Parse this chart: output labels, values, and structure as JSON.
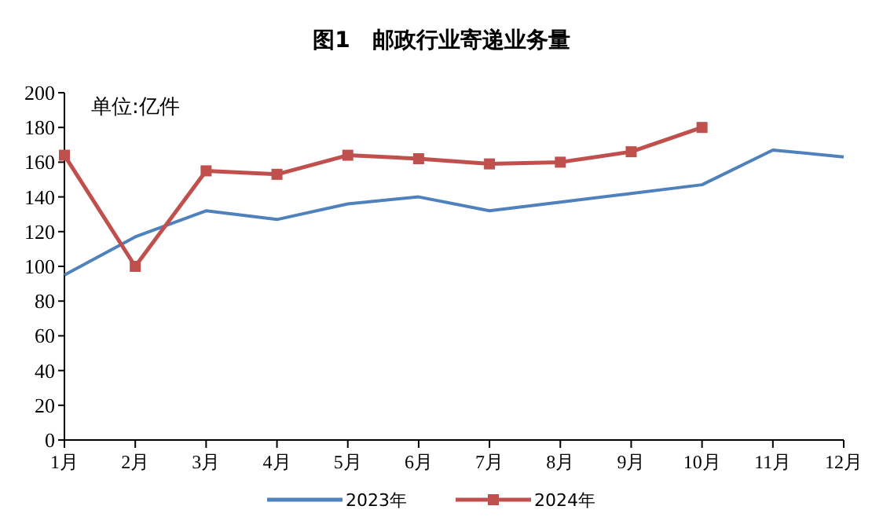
{
  "chart_data": {
    "type": "line",
    "title": "图1　邮政行业寄递业务量",
    "annotations": [
      "单位:亿件"
    ],
    "categories": [
      "1月",
      "2月",
      "3月",
      "4月",
      "5月",
      "6月",
      "7月",
      "8月",
      "9月",
      "10月",
      "11月",
      "12月"
    ],
    "series": [
      {
        "name": "2023年",
        "color": "#4f81bd",
        "marker": "none",
        "values": [
          95,
          117,
          132,
          127,
          136,
          140,
          132,
          137,
          142,
          147,
          167,
          163
        ]
      },
      {
        "name": "2024年",
        "color": "#c0504d",
        "marker": "square",
        "values": [
          164,
          100,
          155,
          153,
          164,
          162,
          159,
          160,
          166,
          180,
          null,
          null
        ]
      }
    ],
    "ylim": [
      0,
      200
    ],
    "yticks": [
      0,
      20,
      40,
      60,
      80,
      100,
      120,
      140,
      160,
      180,
      200
    ],
    "grid": false,
    "legend": "bottom",
    "line_style": "solid"
  }
}
